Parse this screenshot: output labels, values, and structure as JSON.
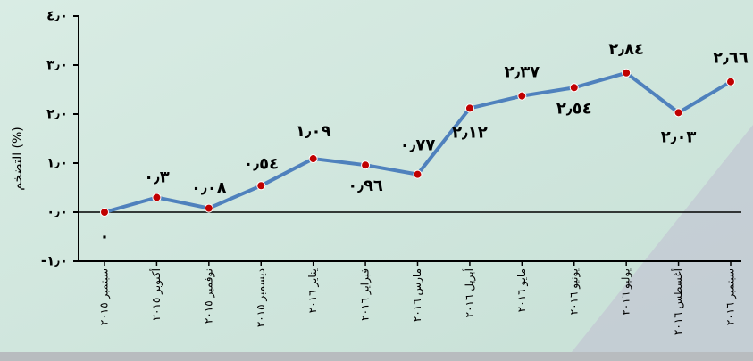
{
  "chart_data": {
    "type": "line",
    "y_label": "التضخم (%)",
    "categories": [
      "سبتمبر ٢٠١٥",
      "أكتوبر ٢٠١٥",
      "نوفمبر ٢٠١٥",
      "ديسمبر ٢٠١٥",
      "يناير ٢٠١٦",
      "فبراير ٢٠١٦",
      "مارس ٢٠١٦",
      "أبريل ٢٠١٦",
      "مايو ٢٠١٦",
      "يونيو ٢٠١٦",
      "يوليو ٢٠١٦",
      "أغسطس ٢٠١٦",
      "سبتمبر ٢٠١٦"
    ],
    "series": [
      {
        "color": "#4f81bd",
        "values": [
          0,
          0.3,
          0.08,
          0.54,
          1.09,
          0.96,
          0.77,
          2.12,
          2.37,
          2.54,
          2.84,
          2.03,
          2.66
        ],
        "value_labels": [
          "٠",
          "٠٫٣",
          "٠٫٠٨",
          "٠٫٥٤",
          "١٫٠٩",
          "٠٫٩٦",
          "٠٫٧٧",
          "٢٫١٢",
          "٢٫٣٧",
          "٢٫٥٤",
          "٢٫٨٤",
          "٢٫٠٣",
          "٢٫٦٦"
        ]
      }
    ],
    "marker_color": "#c00000",
    "ylim": [
      -1,
      4
    ],
    "yticks": [
      {
        "value": -1,
        "label": "-١٫٠"
      },
      {
        "value": 0,
        "label": "٠٫٠"
      },
      {
        "value": 1,
        "label": "١٫٠"
      },
      {
        "value": 2,
        "label": "٢٫٠"
      },
      {
        "value": 3,
        "label": "٣٫٠"
      },
      {
        "value": 4,
        "label": "٤٫٠"
      }
    ]
  }
}
